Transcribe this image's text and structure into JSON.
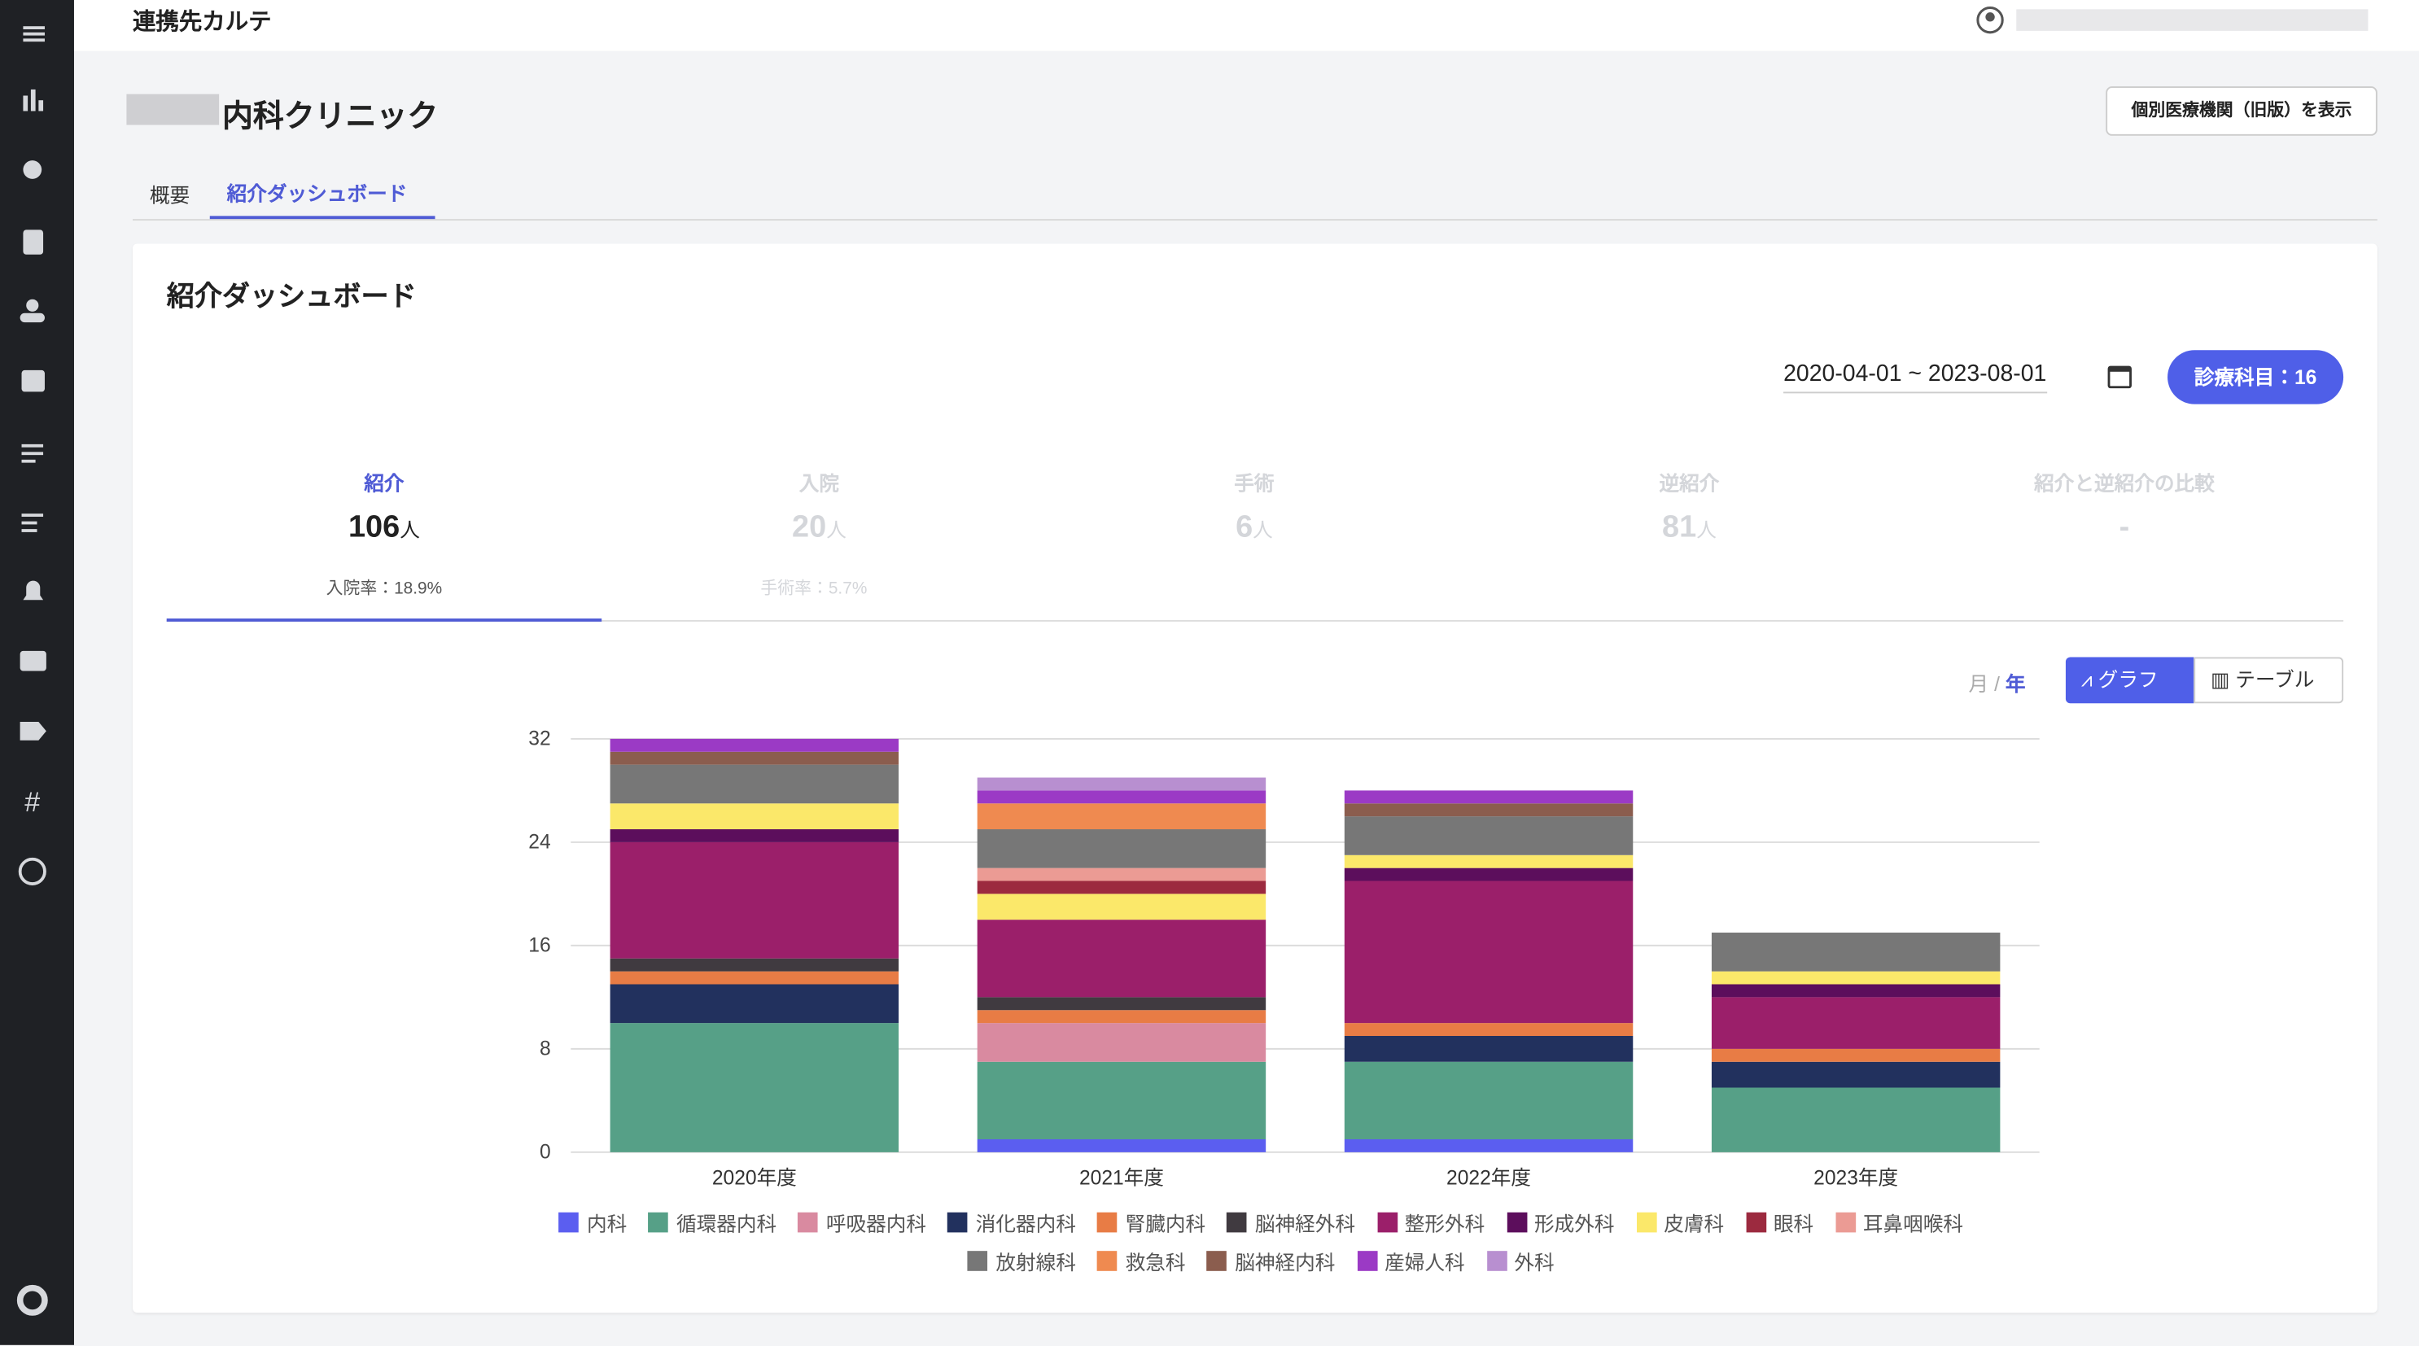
{
  "header": {
    "title": "連携先カルテ"
  },
  "page": {
    "clinic_name": "内科クリニック",
    "legacy_button": "個別医療機関（旧版）を表示",
    "tabs": [
      "概要",
      "紹介ダッシュボード"
    ]
  },
  "card": {
    "title": "紹介ダッシュボード",
    "date_range": "2020-04-01 ~ 2023-08-01",
    "department_filter": "診療科目：16"
  },
  "stats": [
    {
      "label": "紹介",
      "value": 106,
      "unit": "人",
      "rate": "入院率：18.9%"
    },
    {
      "label": "入院",
      "value": 20,
      "unit": "人",
      "rate": "手術率：5.7%"
    },
    {
      "label": "手術",
      "value": 6,
      "unit": "人"
    },
    {
      "label": "逆紹介",
      "value": 81,
      "unit": "人"
    },
    {
      "label": "紹介と逆紹介の比較",
      "value": "-"
    }
  ],
  "view_toggle": {
    "month": "月",
    "separator": "/",
    "year": "年",
    "graph": "グラフ",
    "table": "テーブル"
  },
  "chart_data": {
    "type": "stacked_bar",
    "categories": [
      "2020年度",
      "2021年度",
      "2022年度",
      "2023年度"
    ],
    "ylim": [
      0,
      32
    ],
    "yticks": [
      0,
      8,
      16,
      24,
      32
    ],
    "grid": true,
    "series": [
      {
        "name": "内科",
        "color": "#5b5ef0",
        "values": [
          0,
          1,
          1,
          0
        ]
      },
      {
        "name": "循環器内科",
        "color": "#56a087",
        "values": [
          10,
          6,
          6,
          5
        ]
      },
      {
        "name": "呼吸器内科",
        "color": "#d98aa0",
        "values": [
          0,
          3,
          0,
          0
        ]
      },
      {
        "name": "消化器内科",
        "color": "#22315e",
        "values": [
          3,
          0,
          2,
          2
        ]
      },
      {
        "name": "腎臓内科",
        "color": "#e87c45",
        "values": [
          1,
          1,
          1,
          1
        ]
      },
      {
        "name": "脳神経外科",
        "color": "#403a40",
        "values": [
          1,
          1,
          0,
          0
        ]
      },
      {
        "name": "整形外科",
        "color": "#9b1f6a",
        "values": [
          9,
          6,
          11,
          4
        ]
      },
      {
        "name": "形成外科",
        "color": "#5c0e5c",
        "values": [
          1,
          0,
          1,
          1
        ]
      },
      {
        "name": "皮膚科",
        "color": "#fbe86a",
        "values": [
          2,
          2,
          1,
          1
        ]
      },
      {
        "name": "眼科",
        "color": "#9c2a3f",
        "values": [
          0,
          1,
          0,
          0
        ]
      },
      {
        "name": "耳鼻咽喉科",
        "color": "#eb9b94",
        "values": [
          0,
          1,
          0,
          0
        ]
      },
      {
        "name": "放射線科",
        "color": "#777777",
        "values": [
          3,
          3,
          3,
          3
        ]
      },
      {
        "name": "救急科",
        "color": "#ef8a50",
        "values": [
          0,
          2,
          0,
          0
        ]
      },
      {
        "name": "脳神経内科",
        "color": "#8b5d4e",
        "values": [
          1,
          0,
          1,
          0
        ]
      },
      {
        "name": "産婦人科",
        "color": "#9b3ac5",
        "values": [
          1,
          1,
          1,
          0
        ]
      },
      {
        "name": "外科",
        "color": "#b88fd0",
        "values": [
          0,
          1,
          0,
          0
        ]
      }
    ]
  }
}
